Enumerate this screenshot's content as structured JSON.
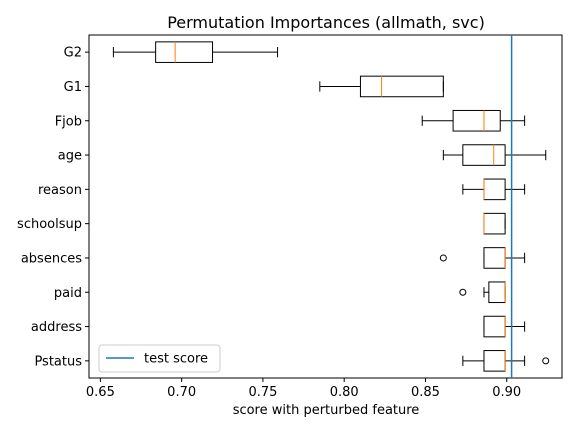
{
  "chart_data": {
    "type": "boxplot",
    "title": "Permutation Importances (allmath, svc)",
    "xlabel": "score with perturbed feature",
    "ylabel": "",
    "xlim": [
      0.643,
      0.934
    ],
    "xticks": [
      0.65,
      0.7,
      0.75,
      0.8,
      0.85,
      0.9
    ],
    "xtick_labels": [
      "0.65",
      "0.70",
      "0.75",
      "0.80",
      "0.85",
      "0.90"
    ],
    "grid": false,
    "categories": [
      "G2",
      "G1",
      "Fjob",
      "age",
      "reason",
      "schoolsup",
      "absences",
      "paid",
      "address",
      "Pstatus"
    ],
    "boxes": [
      {
        "label": "G2",
        "whislo": 0.658,
        "q1": 0.684,
        "med": 0.696,
        "q3": 0.719,
        "whishi": 0.759,
        "fliers": []
      },
      {
        "label": "G1",
        "whislo": 0.785,
        "q1": 0.81,
        "med": 0.823,
        "q3": 0.861,
        "whishi": 0.861,
        "fliers": []
      },
      {
        "label": "Fjob",
        "whislo": 0.848,
        "q1": 0.867,
        "med": 0.886,
        "q3": 0.896,
        "whishi": 0.911,
        "fliers": []
      },
      {
        "label": "age",
        "whislo": 0.861,
        "q1": 0.873,
        "med": 0.892,
        "q3": 0.899,
        "whishi": 0.924,
        "fliers": []
      },
      {
        "label": "reason",
        "whislo": 0.873,
        "q1": 0.886,
        "med": 0.886,
        "q3": 0.899,
        "whishi": 0.911,
        "fliers": []
      },
      {
        "label": "schoolsup",
        "whislo": 0.886,
        "q1": 0.886,
        "med": 0.886,
        "q3": 0.899,
        "whishi": 0.899,
        "fliers": []
      },
      {
        "label": "absences",
        "whislo": 0.886,
        "q1": 0.886,
        "med": 0.899,
        "q3": 0.899,
        "whishi": 0.911,
        "fliers": [
          0.861
        ]
      },
      {
        "label": "paid",
        "whislo": 0.886,
        "q1": 0.889,
        "med": 0.899,
        "q3": 0.899,
        "whishi": 0.899,
        "fliers": [
          0.873
        ]
      },
      {
        "label": "address",
        "whislo": 0.886,
        "q1": 0.886,
        "med": 0.899,
        "q3": 0.899,
        "whishi": 0.911,
        "fliers": []
      },
      {
        "label": "Pstatus",
        "whislo": 0.873,
        "q1": 0.886,
        "med": 0.899,
        "q3": 0.899,
        "whishi": 0.911,
        "fliers": [
          0.924
        ]
      }
    ],
    "reference_line": {
      "label": "test score",
      "value": 0.903,
      "color": "#1f77b4"
    },
    "legend": {
      "position": "lower-left",
      "entries": [
        "test score"
      ]
    },
    "colors": {
      "box": "#000000",
      "median": "#ff7f0e",
      "whisker": "#000000",
      "flier": "#000000"
    }
  }
}
